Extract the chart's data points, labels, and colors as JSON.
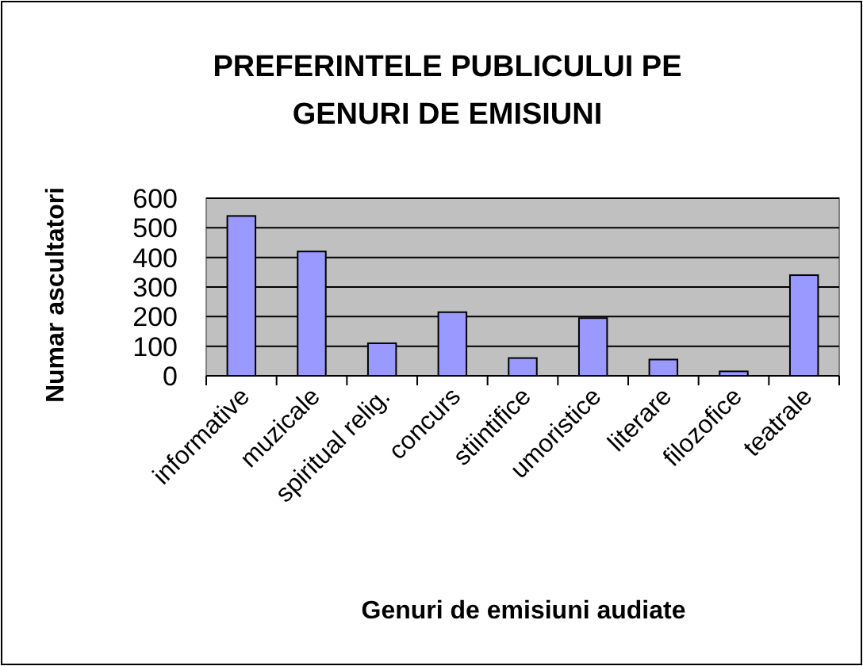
{
  "chart_data": {
    "type": "bar",
    "title": "PREFERINTELE PUBLICULUI PE GENURI DE EMISIUNI",
    "xlabel": "Genuri de emisiuni audiate",
    "ylabel": "Numar ascultatori",
    "categories": [
      "informative",
      "muzicale",
      "spiritual relig.",
      "concurs",
      "stiintifice",
      "umoristice",
      "literare",
      "filozofice",
      "teatrale"
    ],
    "values": [
      540,
      420,
      110,
      215,
      60,
      195,
      55,
      15,
      340
    ],
    "color": "#9999ff",
    "ylim": [
      0,
      600
    ],
    "yticks": [
      0,
      100,
      200,
      300,
      400,
      500,
      600
    ],
    "grid": "y"
  }
}
